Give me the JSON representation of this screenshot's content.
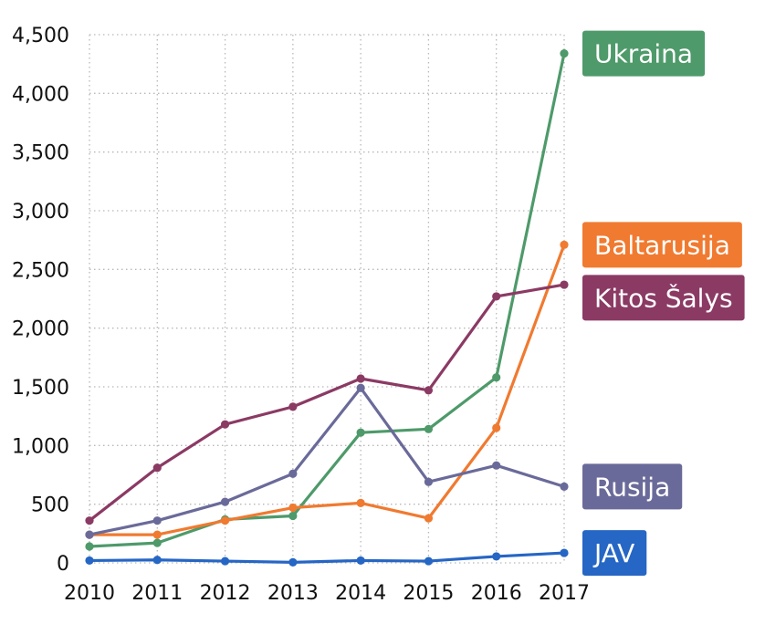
{
  "chart_data": {
    "type": "line",
    "title": "",
    "xlabel": "",
    "ylabel": "",
    "categories": [
      "2010",
      "2011",
      "2012",
      "2013",
      "2014",
      "2015",
      "2016",
      "2017"
    ],
    "ylim": [
      0,
      4500
    ],
    "yticks": [
      0,
      500,
      1000,
      1500,
      2000,
      2500,
      3000,
      3500,
      4000,
      4500
    ],
    "ytick_labels": [
      "0",
      "500",
      "1,000",
      "1,500",
      "2,000",
      "2,500",
      "3,000",
      "3,500",
      "4,000",
      "4,500"
    ],
    "grid": true,
    "legend": "direct labels at right end of each line",
    "series": [
      {
        "name": "Ukraina",
        "color": "#4e9a6a",
        "values": [
          140,
          170,
          370,
          400,
          1110,
          1140,
          1580,
          4340
        ]
      },
      {
        "name": "Baltarusija",
        "color": "#f07a30",
        "values": [
          240,
          240,
          360,
          470,
          510,
          380,
          1150,
          2710
        ]
      },
      {
        "name": "Kitos Šalys",
        "color": "#8b3a64",
        "values": [
          360,
          810,
          1180,
          1330,
          1570,
          1470,
          2270,
          2370
        ]
      },
      {
        "name": "Rusija",
        "color": "#6a6a9a",
        "values": [
          240,
          360,
          520,
          760,
          1490,
          690,
          830,
          650
        ]
      },
      {
        "name": "JAV",
        "color": "#2666c4",
        "values": [
          20,
          25,
          15,
          5,
          20,
          15,
          55,
          85
        ]
      }
    ]
  }
}
